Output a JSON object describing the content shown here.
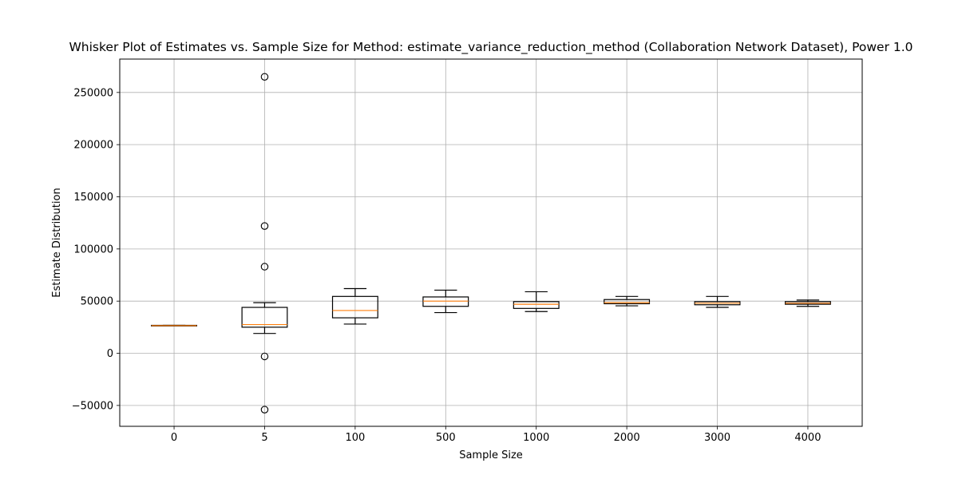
{
  "chart_data": {
    "type": "box",
    "title": "Whisker Plot of Estimates vs. Sample Size for Method: estimate_variance_reduction_method (Collaboration Network Dataset), Power 1.0",
    "xlabel": "Sample Size",
    "ylabel": "Estimate Distribution",
    "categories": [
      "0",
      "5",
      "100",
      "500",
      "1000",
      "2000",
      "3000",
      "4000"
    ],
    "ylim": [
      -70000,
      282000
    ],
    "yticks": [
      -50000,
      0,
      50000,
      100000,
      150000,
      200000,
      250000
    ],
    "grid": true,
    "box_color": "#000000",
    "median_color": "#ff7f0e",
    "grid_color": "#b0b0b0",
    "boxes": [
      {
        "category": "0",
        "whisker_low": 26500,
        "q1": 26500,
        "median": 26500,
        "q3": 26800,
        "whisker_high": 26800,
        "outliers": []
      },
      {
        "category": "5",
        "whisker_low": 19000,
        "q1": 25000,
        "median": 27500,
        "q3": 44000,
        "whisker_high": 48500,
        "outliers": [
          265000,
          122000,
          83000,
          -3000,
          -54000
        ]
      },
      {
        "category": "100",
        "whisker_low": 28000,
        "q1": 34000,
        "median": 41000,
        "q3": 54500,
        "whisker_high": 62000,
        "outliers": []
      },
      {
        "category": "500",
        "whisker_low": 39000,
        "q1": 45000,
        "median": 50000,
        "q3": 54000,
        "whisker_high": 60500,
        "outliers": []
      },
      {
        "category": "1000",
        "whisker_low": 40000,
        "q1": 43000,
        "median": 47000,
        "q3": 49500,
        "whisker_high": 59000,
        "outliers": []
      },
      {
        "category": "2000",
        "whisker_low": 45500,
        "q1": 47500,
        "median": 48500,
        "q3": 51500,
        "whisker_high": 54500,
        "outliers": []
      },
      {
        "category": "3000",
        "whisker_low": 44000,
        "q1": 46500,
        "median": 48000,
        "q3": 49500,
        "whisker_high": 54500,
        "outliers": []
      },
      {
        "category": "4000",
        "whisker_low": 45000,
        "q1": 47000,
        "median": 48000,
        "q3": 49500,
        "whisker_high": 51000,
        "outliers": []
      }
    ]
  }
}
